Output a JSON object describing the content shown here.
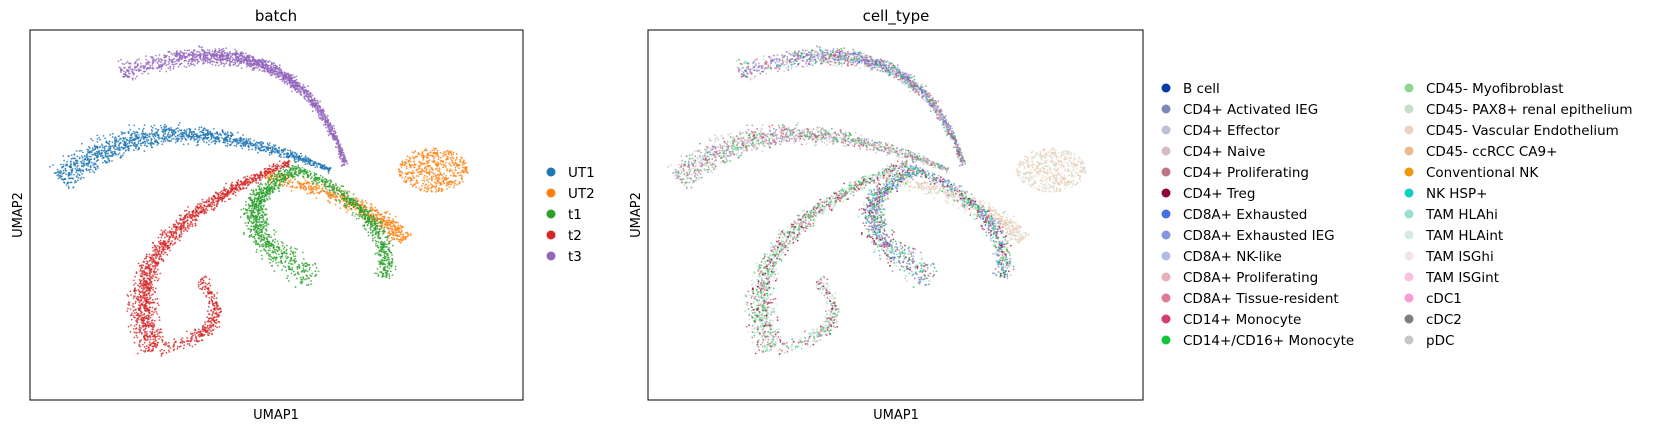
{
  "chart_data": [
    {
      "type": "scatter",
      "title": "batch",
      "xlabel": "UMAP1",
      "ylabel": "UMAP2",
      "grid": false,
      "xticks": false,
      "yticks": false,
      "legend": "right",
      "series": [
        {
          "name": "UT1",
          "color": "#1f77b4"
        },
        {
          "name": "UT2",
          "color": "#ff7f0e"
        },
        {
          "name": "t1",
          "color": "#2ca02c"
        },
        {
          "name": "t2",
          "color": "#d62728"
        },
        {
          "name": "t3",
          "color": "#9467bd"
        }
      ]
    },
    {
      "type": "scatter",
      "title": "cell_type",
      "xlabel": "UMAP1",
      "ylabel": "UMAP2",
      "grid": false,
      "xticks": false,
      "yticks": false,
      "legend": "right",
      "series": [
        {
          "name": "B cell",
          "color": "#023fa5"
        },
        {
          "name": "CD4+ Activated IEG",
          "color": "#7d87b9"
        },
        {
          "name": "CD4+ Effector",
          "color": "#bec1d4"
        },
        {
          "name": "CD4+ Naive",
          "color": "#d6bcc0"
        },
        {
          "name": "CD4+ Proliferating",
          "color": "#bb7784"
        },
        {
          "name": "CD4+ Treg",
          "color": "#8e063b"
        },
        {
          "name": "CD8A+ Exhausted",
          "color": "#4a6fe3"
        },
        {
          "name": "CD8A+ Exhausted IEG",
          "color": "#8595e1"
        },
        {
          "name": "CD8A+ NK-like",
          "color": "#b5bbe3"
        },
        {
          "name": "CD8A+ Proliferating",
          "color": "#e6afb9"
        },
        {
          "name": "CD8A+ Tissue-resident",
          "color": "#e07b91"
        },
        {
          "name": "CD14+ Monocyte",
          "color": "#d33f6a"
        },
        {
          "name": "CD14+/CD16+ Monocyte",
          "color": "#11c638"
        },
        {
          "name": "CD45- Myofibroblast",
          "color": "#8dd593"
        },
        {
          "name": "CD45- PAX8+ renal epithelium",
          "color": "#c6dec7"
        },
        {
          "name": "CD45- Vascular Endothelium",
          "color": "#ead3c6"
        },
        {
          "name": "CD45- ccRCC CA9+",
          "color": "#f0b98d"
        },
        {
          "name": "Conventional NK",
          "color": "#ef9708"
        },
        {
          "name": "NK HSP+",
          "color": "#0fcfc0"
        },
        {
          "name": "TAM HLAhi",
          "color": "#9cded6"
        },
        {
          "name": "TAM HLAint",
          "color": "#d5eae7"
        },
        {
          "name": "TAM ISGhi",
          "color": "#f3e1eb"
        },
        {
          "name": "TAM ISGint",
          "color": "#f6c4e1"
        },
        {
          "name": "cDC1",
          "color": "#f79cd4"
        },
        {
          "name": "cDC2",
          "color": "#7f7f7f"
        },
        {
          "name": "pDC",
          "color": "#c7c7c7"
        }
      ]
    }
  ]
}
